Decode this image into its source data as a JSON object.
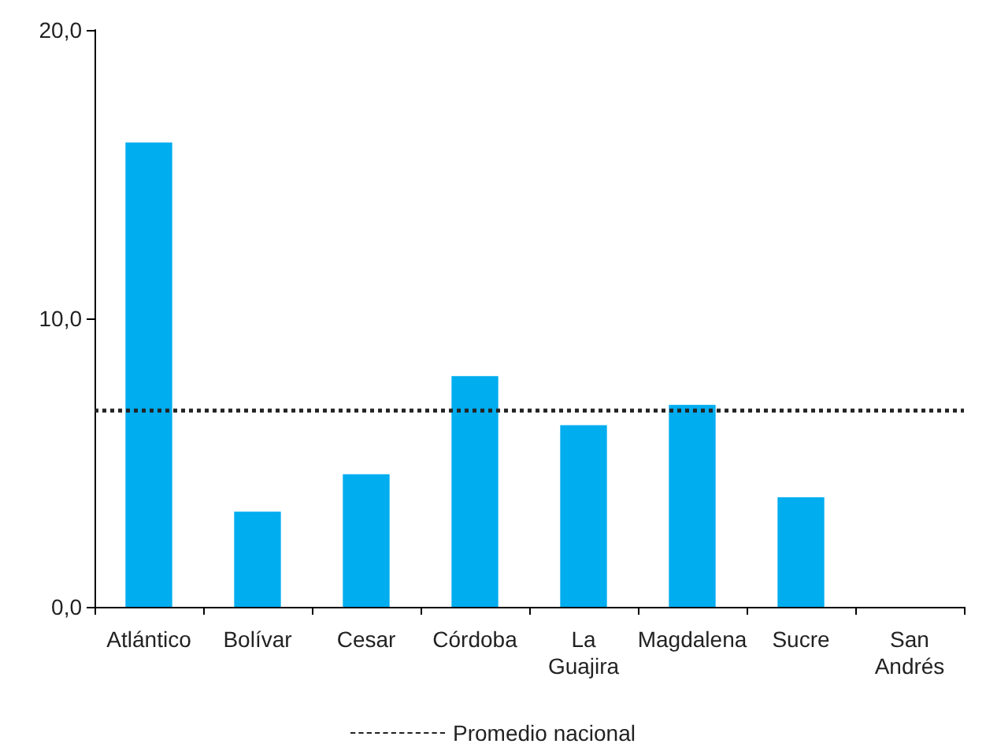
{
  "chart_data": {
    "type": "bar",
    "categories": [
      "Atlántico",
      "Bolívar",
      "Cesar",
      "Córdoba",
      "La Guajira",
      "Magdalena",
      "Sucre",
      "San Andrés"
    ],
    "values": [
      16.1,
      3.3,
      4.6,
      8.0,
      6.3,
      7.0,
      3.8,
      null
    ],
    "color": "#00adef",
    "ylim": [
      0,
      20
    ],
    "yticks": [
      {
        "value": 0,
        "label": "0,0"
      },
      {
        "value": 10,
        "label": "10,0"
      },
      {
        "value": 20,
        "label": "20,0"
      }
    ],
    "grid": false,
    "legend": "bottom",
    "ref_lines": [
      {
        "axis": "y",
        "value": 6.8,
        "label": "Promedio nacional",
        "color": "#222222",
        "line_style": "dotted"
      }
    ]
  }
}
